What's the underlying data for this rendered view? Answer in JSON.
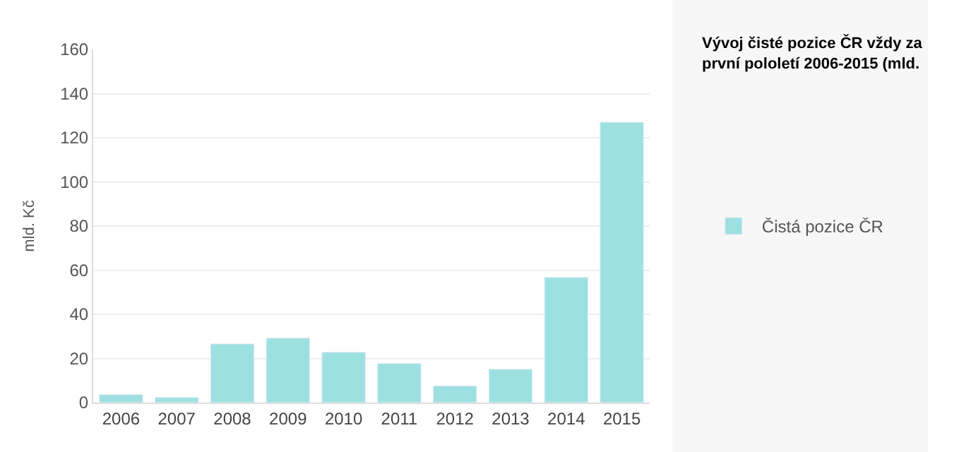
{
  "chart_data": {
    "type": "bar",
    "title": "Vývoj čisté pozice ČR vždy za první pololetí 2006-2015 (mld.",
    "ylabel": "mld. Kč",
    "categories": [
      "2006",
      "2007",
      "2008",
      "2009",
      "2010",
      "2011",
      "2012",
      "2013",
      "2014",
      "2015"
    ],
    "series": [
      {
        "name": "Čistá pozice ČR",
        "color": "#9de0e2",
        "values": [
          3.6,
          2.3,
          26.6,
          29.2,
          22.8,
          17.7,
          7.5,
          15.1,
          56.7,
          127
        ]
      }
    ],
    "ylim": [
      0,
      160
    ],
    "yticks": [
      0,
      20,
      40,
      60,
      80,
      100,
      120,
      140,
      160
    ],
    "grid": "y",
    "legend": "right"
  }
}
